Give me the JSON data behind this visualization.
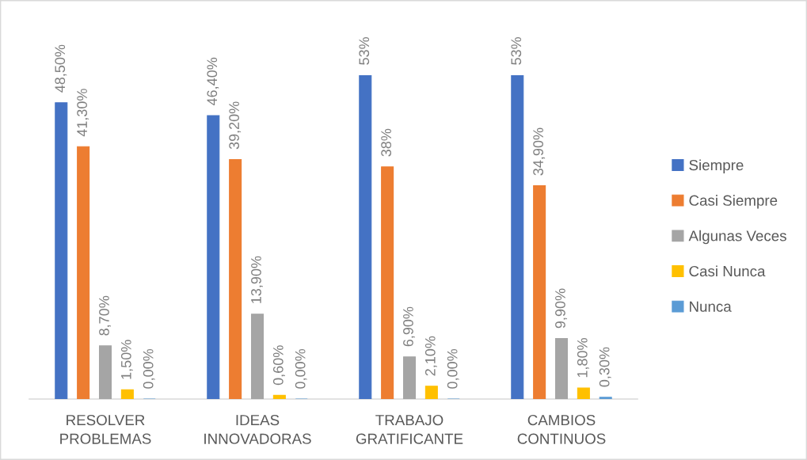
{
  "chart_data": {
    "type": "bar",
    "categories": [
      "RESOLVER\nPROBLEMAS",
      "IDEAS\nINNOVADORAS",
      "TRABAJO\nGRATIFICANTE",
      "CAMBIOS\nCONTINUOS"
    ],
    "series": [
      {
        "name": "Siempre",
        "color": "#4472c4",
        "values": [
          48.5,
          46.4,
          53,
          53
        ],
        "value_labels": [
          "48,50%",
          "46,40%",
          "53%",
          "53%"
        ]
      },
      {
        "name": "Casi Siempre",
        "color": "#ed7d31",
        "values": [
          41.3,
          39.2,
          38,
          34.9
        ],
        "value_labels": [
          "41,30%",
          "39,20%",
          "38%",
          "34,90%"
        ]
      },
      {
        "name": "Algunas Veces",
        "color": "#a5a5a5",
        "values": [
          8.7,
          13.9,
          6.9,
          9.9
        ],
        "value_labels": [
          "8,70%",
          "13,90%",
          "6,90%",
          "9,90%"
        ]
      },
      {
        "name": "Casi Nunca",
        "color": "#ffc000",
        "values": [
          1.5,
          0.6,
          2.1,
          1.8
        ],
        "value_labels": [
          "1,50%",
          "0,60%",
          "2,10%",
          "1,80%"
        ]
      },
      {
        "name": "Nunca",
        "color": "#5b9bd5",
        "values": [
          0,
          0,
          0,
          0.3
        ],
        "value_labels": [
          "0,00%",
          "0,00%",
          "0,00%",
          "0,30%"
        ]
      }
    ],
    "legend": "right"
  }
}
